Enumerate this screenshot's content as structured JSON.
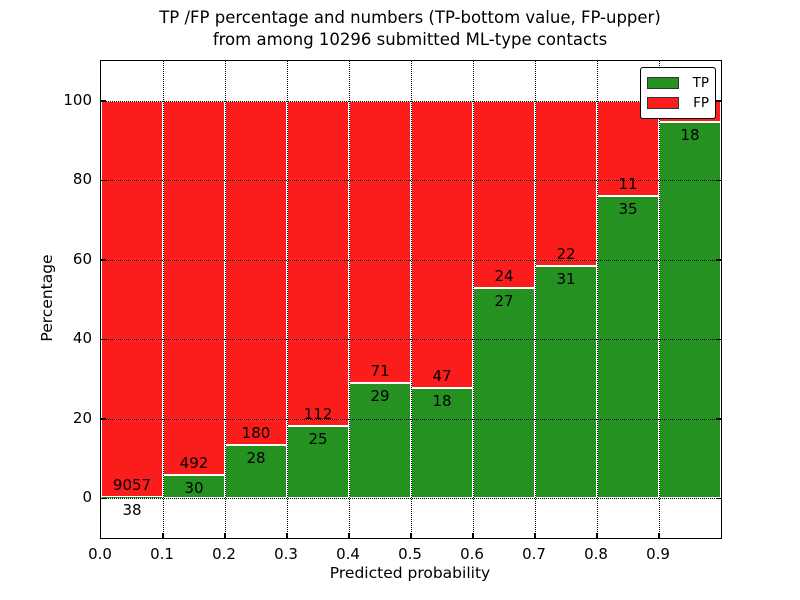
{
  "title": {
    "line1": "TP /FP percentage and numbers (TP-bottom value, FP-upper)",
    "line2": "from among 10296 submitted ML-type contacts"
  },
  "chart_data": {
    "type": "bar",
    "stacked": true,
    "title": "TP /FP percentage and numbers (TP-bottom value, FP-upper) from among 10296 submitted ML-type contacts",
    "xlabel": "Predicted probability",
    "ylabel": "Percentage",
    "total_submitted": 10296,
    "xlim": [
      0.0,
      1.0
    ],
    "ylim": [
      -10,
      110
    ],
    "grid": true,
    "bar_width": 0.1,
    "bin_starts": [
      0.0,
      0.1,
      0.2,
      0.3,
      0.4,
      0.5,
      0.6,
      0.7,
      0.8,
      0.9
    ],
    "x_tick_values": [
      0.0,
      0.1,
      0.2,
      0.3,
      0.4,
      0.5,
      0.6,
      0.7,
      0.8,
      0.9
    ],
    "x_tick_labels": [
      "0.0",
      "0.1",
      "0.2",
      "0.3",
      "0.4",
      "0.5",
      "0.6",
      "0.7",
      "0.8",
      "0.9"
    ],
    "y_tick_values": [
      0,
      20,
      40,
      60,
      80,
      100
    ],
    "y_tick_labels": [
      "0",
      "20",
      "40",
      "60",
      "80",
      "100"
    ],
    "series": [
      {
        "name": "TP",
        "color": "#249121",
        "count_labels": [
          "38",
          "30",
          "28",
          "25",
          "29",
          "18",
          "27",
          "31",
          "35",
          "18"
        ],
        "pct": [
          0.42,
          5.75,
          13.46,
          18.25,
          29.0,
          27.69,
          52.94,
          58.49,
          76.09,
          94.74
        ]
      },
      {
        "name": "FP",
        "color": "#fa1d1b",
        "count_labels": [
          "9057",
          "492",
          "180",
          "112",
          "71",
          "47",
          "24",
          "22",
          "11",
          null
        ],
        "pct": [
          99.58,
          94.25,
          86.54,
          81.75,
          71.0,
          72.31,
          47.06,
          41.51,
          23.91,
          5.26
        ]
      }
    ],
    "legend": {
      "position": "upper right",
      "items": [
        {
          "label": "TP",
          "color": "#249121"
        },
        {
          "label": "FP",
          "color": "#fa1d1b"
        }
      ]
    }
  }
}
